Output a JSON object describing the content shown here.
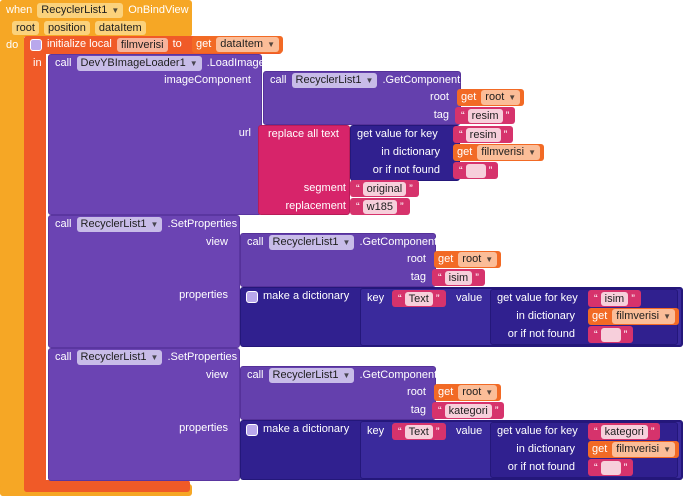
{
  "event": {
    "when": "when",
    "component": "RecyclerList1",
    "event": "OnBindView",
    "params": [
      "root",
      "position",
      "dataItem"
    ],
    "do": "do"
  },
  "local": {
    "label": "initialize local",
    "name": "filmverisi",
    "to": "to",
    "get": "get",
    "value": "dataItem",
    "in": "in"
  },
  "load_image": {
    "call": "call",
    "component": "DevYBImageLoader1",
    "method": ".LoadImage",
    "image_component_label": "imageComponent",
    "url_label": "url",
    "get_component": {
      "call": "call",
      "component": "RecyclerList1",
      "method": ".GetComponent",
      "root_label": "root",
      "get": "get",
      "root": "root",
      "tag_label": "tag",
      "tag": "resim"
    },
    "replace": {
      "label": "replace all text",
      "lookup": {
        "label": "get value for key",
        "key": "resim",
        "dict_label": "in dictionary",
        "get": "get",
        "dict": "filmverisi",
        "not_found_label": "or if not found"
      },
      "segment_label": "segment",
      "segment": "original",
      "replacement_label": "replacement",
      "replacement": "w185"
    }
  },
  "set_properties": [
    {
      "call": "call",
      "component": "RecyclerList1",
      "method": ".SetProperties",
      "view_label": "view",
      "get_component": {
        "call": "call",
        "component": "RecyclerList1",
        "method": ".GetComponent",
        "root_label": "root",
        "get": "get",
        "root": "root",
        "tag_label": "tag",
        "tag": "isim"
      },
      "properties_label": "properties",
      "dictionary": {
        "label": "make a dictionary",
        "key_label": "key",
        "key": "Text",
        "value_label": "value",
        "lookup": {
          "label": "get value for key",
          "key": "isim",
          "dict_label": "in dictionary",
          "get": "get",
          "dict": "filmverisi",
          "not_found_label": "or if not found"
        }
      }
    },
    {
      "call": "call",
      "component": "RecyclerList1",
      "method": ".SetProperties",
      "view_label": "view",
      "get_component": {
        "call": "call",
        "component": "RecyclerList1",
        "method": ".GetComponent",
        "root_label": "root",
        "get": "get",
        "root": "root",
        "tag_label": "tag",
        "tag": "kategori"
      },
      "properties_label": "properties",
      "dictionary": {
        "label": "make a dictionary",
        "key_label": "key",
        "key": "Text",
        "value_label": "value",
        "lookup": {
          "label": "get value for key",
          "key": "kategori",
          "dict_label": "in dictionary",
          "get": "get",
          "dict": "filmverisi",
          "not_found_label": "or if not found"
        }
      }
    }
  ]
}
